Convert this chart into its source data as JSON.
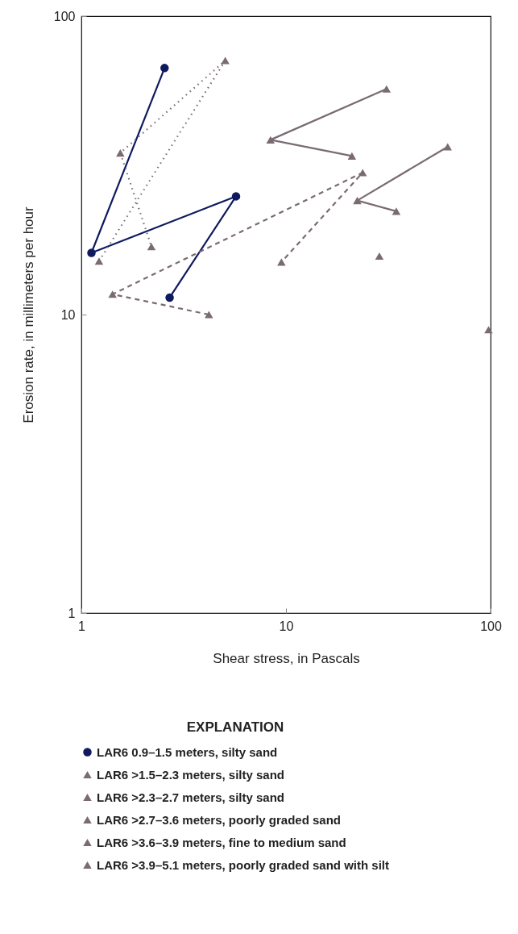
{
  "chart_data": {
    "type": "line",
    "xlabel": "Shear stress, in Pascals",
    "ylabel": "Erosion rate, in  millimeters per hour",
    "legend_title": "EXPLANATION",
    "log": "xy",
    "grid": false,
    "legend": "bottom",
    "xlim": [
      1,
      100
    ],
    "xticks": [
      1,
      10,
      100
    ],
    "ylim": [
      1,
      100
    ],
    "yticks": [
      1,
      10,
      100
    ],
    "series": [
      {
        "name": "LAR6 0.9–1.5 meters, silty sand",
        "type": "line",
        "color": "#0f1a5e",
        "marker": "circle",
        "line_style": "solid",
        "x": [
          2.55,
          1.12,
          5.7,
          2.7
        ],
        "values": [
          67,
          16.1,
          24.9,
          11.4
        ]
      },
      {
        "name": "LAR6 >1.5–2.3 meters, silty sand",
        "type": "line",
        "color": "#7a6b73",
        "marker": "triangle",
        "line_style": "dotted",
        "x": [
          1.22,
          5.05,
          1.55,
          2.2
        ],
        "values": [
          15.1,
          71,
          34.8,
          16.9
        ]
      },
      {
        "name": "LAR6 >2.3–2.7 meters, silty sand",
        "type": "line",
        "color": "#7a6b73",
        "marker": "triangle",
        "line_style": "dashed",
        "x": [
          4.2,
          1.42,
          23.7,
          9.5
        ],
        "values": [
          10,
          11.7,
          29.9,
          15
        ]
      },
      {
        "name": "LAR6 >2.7–3.6 meters, poorly graded sand",
        "type": "line",
        "color": "#7a6b73",
        "marker": "triangle",
        "line_style": "solid",
        "x": [
          31,
          8.4,
          21
        ],
        "values": [
          57,
          38.5,
          34
        ]
      },
      {
        "name": "LAR6 >3.6–3.9 meters, fine to medium sand",
        "type": "scatter",
        "color": "#7a6b73",
        "marker": "triangle",
        "x": [
          28.6,
          97.7
        ],
        "values": [
          15.7,
          8.9
        ]
      },
      {
        "name": "LAR6 >3.9–5.1 meters, poorly graded sand with silt",
        "type": "line",
        "color": "#7a6b73",
        "marker": "triangle",
        "line_style": "solid",
        "x": [
          61.7,
          22.3,
          34.6
        ],
        "values": [
          36.5,
          24.1,
          22.2
        ]
      }
    ]
  }
}
